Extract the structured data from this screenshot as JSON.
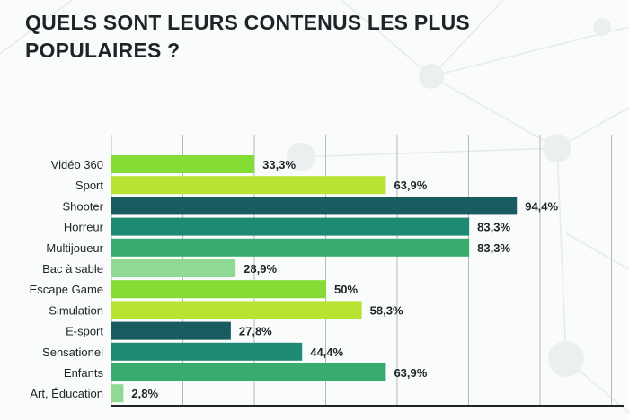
{
  "title": "QUELS SONT LEURS CONTENUS LES PLUS POPULAIRES ?",
  "chart_data": {
    "type": "bar",
    "orientation": "horizontal",
    "categories": [
      "Vidéo 360",
      "Sport",
      "Shooter",
      "Horreur",
      "Multijoueur",
      "Bac à sable",
      "Escape Game",
      "Simulation",
      "E-sport",
      "Sensationel",
      "Enfants",
      "Art, Éducation"
    ],
    "values": [
      33.3,
      63.9,
      94.4,
      83.3,
      83.3,
      28.9,
      50,
      58.3,
      27.8,
      44.4,
      63.9,
      2.8
    ],
    "data_labels": [
      "33,3%",
      "63,9%",
      "94,4%",
      "83,3%",
      "83,3%",
      "28,9%",
      "50%",
      "58,3%",
      "27,8%",
      "44,4%",
      "63,9%",
      "2,8%"
    ],
    "colors": [
      "#84dc34",
      "#b9e333",
      "#1a5b5f",
      "#1f8a73",
      "#3aab6f",
      "#90d994",
      "#84dc34",
      "#b9e333",
      "#1a5b5f",
      "#1f8a73",
      "#3aab6f",
      "#90d994"
    ],
    "xlim": [
      0,
      115
    ],
    "grid": true,
    "title": "QUELS SONT LEURS CONTENUS LES PLUS POPULAIRES ?",
    "xlabel": "",
    "ylabel": ""
  }
}
